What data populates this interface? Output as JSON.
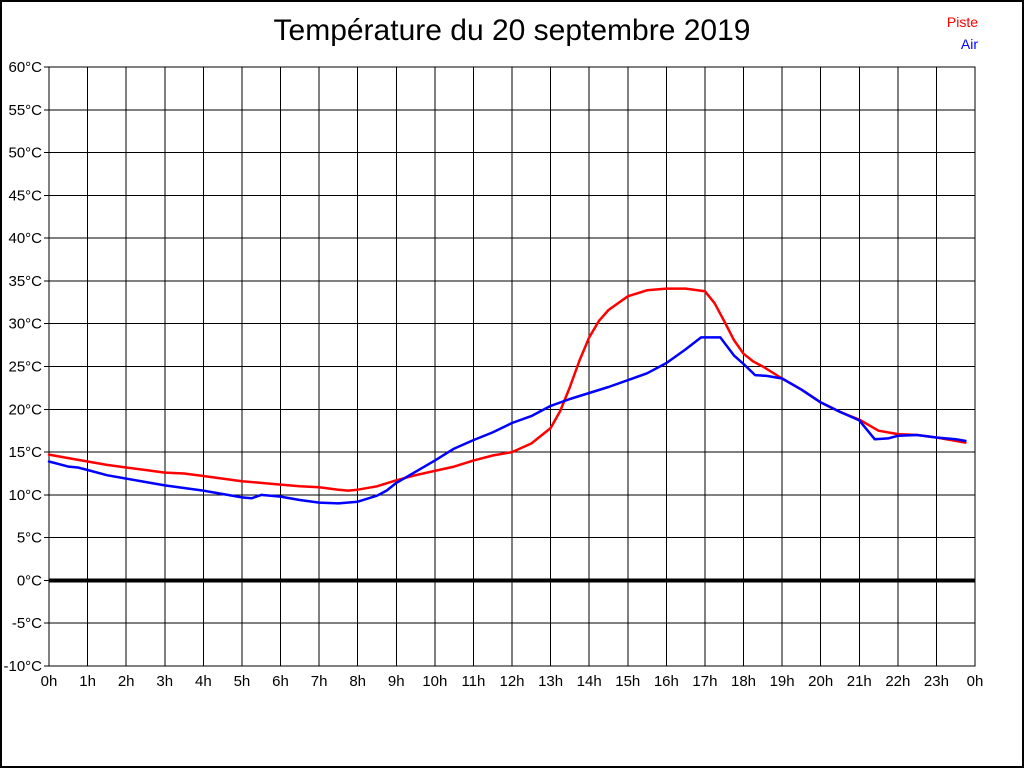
{
  "title": "Température du 20 septembre 2019",
  "legend": [
    {
      "label": "Piste",
      "color": "#ff0000"
    },
    {
      "label": "Air",
      "color": "#0000ff"
    }
  ],
  "chart_data": {
    "type": "line",
    "title": "Température du 20 septembre 2019",
    "xlabel": "",
    "ylabel": "",
    "xlim": [
      0,
      24
    ],
    "ylim": [
      -10,
      60
    ],
    "y_tick_step": 5,
    "y_tick_suffix": "°C",
    "x_tick_labels": [
      "0h",
      "1h",
      "2h",
      "3h",
      "4h",
      "5h",
      "6h",
      "7h",
      "8h",
      "9h",
      "10h",
      "11h",
      "12h",
      "13h",
      "14h",
      "15h",
      "16h",
      "17h",
      "18h",
      "19h",
      "20h",
      "21h",
      "22h",
      "23h",
      "0h"
    ],
    "grid": true,
    "zero_line": true,
    "legend_position": "top-right",
    "series": [
      {
        "name": "Piste",
        "color": "#ff0000",
        "points": [
          [
            0,
            14.7
          ],
          [
            0.5,
            14.3
          ],
          [
            1,
            13.9
          ],
          [
            1.5,
            13.5
          ],
          [
            2,
            13.2
          ],
          [
            2.5,
            12.9
          ],
          [
            3,
            12.6
          ],
          [
            3.5,
            12.5
          ],
          [
            4,
            12.2
          ],
          [
            4.5,
            11.9
          ],
          [
            5,
            11.6
          ],
          [
            5.5,
            11.4
          ],
          [
            6,
            11.2
          ],
          [
            6.5,
            11.0
          ],
          [
            7,
            10.9
          ],
          [
            7.5,
            10.6
          ],
          [
            7.75,
            10.5
          ],
          [
            8,
            10.6
          ],
          [
            8.5,
            11.0
          ],
          [
            9,
            11.7
          ],
          [
            9.5,
            12.3
          ],
          [
            10,
            12.8
          ],
          [
            10.5,
            13.3
          ],
          [
            11,
            14.0
          ],
          [
            11.5,
            14.6
          ],
          [
            12,
            15.0
          ],
          [
            12.5,
            16.0
          ],
          [
            13,
            17.8
          ],
          [
            13.25,
            19.8
          ],
          [
            13.5,
            22.6
          ],
          [
            13.75,
            25.7
          ],
          [
            14,
            28.4
          ],
          [
            14.25,
            30.3
          ],
          [
            14.5,
            31.6
          ],
          [
            15,
            33.2
          ],
          [
            15.5,
            33.9
          ],
          [
            16,
            34.1
          ],
          [
            16.5,
            34.1
          ],
          [
            17,
            33.8
          ],
          [
            17.25,
            32.4
          ],
          [
            17.5,
            30.3
          ],
          [
            17.75,
            28.1
          ],
          [
            18,
            26.5
          ],
          [
            18.25,
            25.6
          ],
          [
            18.5,
            25.0
          ],
          [
            19,
            23.6
          ],
          [
            19.5,
            22.3
          ],
          [
            20,
            20.8
          ],
          [
            20.5,
            19.7
          ],
          [
            21,
            18.8
          ],
          [
            21.5,
            17.5
          ],
          [
            22,
            17.1
          ],
          [
            22.5,
            17.0
          ],
          [
            23,
            16.7
          ],
          [
            23.5,
            16.3
          ],
          [
            23.75,
            16.1
          ]
        ]
      },
      {
        "name": "Air",
        "color": "#0000ff",
        "points": [
          [
            0,
            13.9
          ],
          [
            0.5,
            13.3
          ],
          [
            0.75,
            13.2
          ],
          [
            1,
            12.9
          ],
          [
            1.5,
            12.3
          ],
          [
            2,
            11.9
          ],
          [
            2.5,
            11.5
          ],
          [
            3,
            11.1
          ],
          [
            3.5,
            10.8
          ],
          [
            4,
            10.5
          ],
          [
            4.5,
            10.1
          ],
          [
            5,
            9.7
          ],
          [
            5.25,
            9.6
          ],
          [
            5.5,
            10.0
          ],
          [
            6,
            9.8
          ],
          [
            6.5,
            9.4
          ],
          [
            7,
            9.1
          ],
          [
            7.5,
            9.0
          ],
          [
            8,
            9.2
          ],
          [
            8.5,
            9.9
          ],
          [
            8.75,
            10.5
          ],
          [
            9,
            11.4
          ],
          [
            9.5,
            12.7
          ],
          [
            10,
            14.0
          ],
          [
            10.5,
            15.4
          ],
          [
            11,
            16.4
          ],
          [
            11.5,
            17.3
          ],
          [
            12,
            18.4
          ],
          [
            12.5,
            19.2
          ],
          [
            13,
            20.4
          ],
          [
            13.5,
            21.2
          ],
          [
            14,
            21.9
          ],
          [
            14.5,
            22.6
          ],
          [
            15,
            23.4
          ],
          [
            15.5,
            24.2
          ],
          [
            16,
            25.4
          ],
          [
            16.5,
            27.0
          ],
          [
            16.9,
            28.4
          ],
          [
            17.4,
            28.4
          ],
          [
            17.75,
            26.3
          ],
          [
            18,
            25.3
          ],
          [
            18.3,
            24.0
          ],
          [
            18.6,
            23.9
          ],
          [
            19,
            23.6
          ],
          [
            19.5,
            22.3
          ],
          [
            20,
            20.8
          ],
          [
            20.5,
            19.7
          ],
          [
            21,
            18.7
          ],
          [
            21.4,
            16.5
          ],
          [
            21.75,
            16.6
          ],
          [
            22,
            16.9
          ],
          [
            22.5,
            17.0
          ],
          [
            23,
            16.7
          ],
          [
            23.5,
            16.5
          ],
          [
            23.75,
            16.3
          ]
        ]
      }
    ]
  }
}
